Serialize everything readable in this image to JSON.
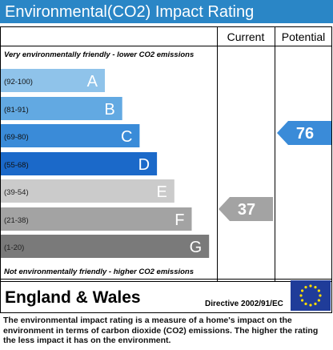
{
  "title": "Environmental(CO2) Impact Rating",
  "headers": {
    "current": "Current",
    "potential": "Potential"
  },
  "top_note": "Very environmentally friendly - lower CO2 emissions",
  "bottom_note": "Not environmentally friendly - higher CO2 emissions",
  "bands": [
    {
      "range": "(92-100)",
      "letter": "A",
      "color": "#8fc3ea"
    },
    {
      "range": "(81-91)",
      "letter": "B",
      "color": "#62a9e2"
    },
    {
      "range": "(69-80)",
      "letter": "C",
      "color": "#3a8bd8"
    },
    {
      "range": "(55-68)",
      "letter": "D",
      "color": "#1b69c9"
    },
    {
      "range": "(39-54)",
      "letter": "E",
      "color": "#cbcbcb"
    },
    {
      "range": "(21-38)",
      "letter": "F",
      "color": "#a3a3a3"
    },
    {
      "range": "(1-20)",
      "letter": "G",
      "color": "#7a7a7a"
    }
  ],
  "current": "37",
  "potential": "76",
  "region": "England & Wales",
  "directive": "Directive 2002/91/EC",
  "description": "The environmental impact rating is a measure of a home's impact on the environment in terms of carbon dioxide (CO2) emissions. The higher the rating the less impact it has on the environment."
}
